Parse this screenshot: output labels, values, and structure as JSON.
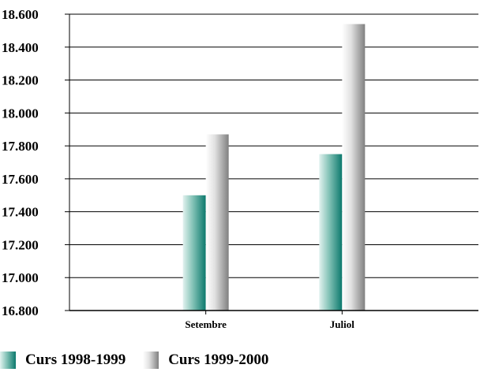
{
  "chart_data": {
    "type": "bar",
    "categories": [
      "Setembre",
      "Juliol"
    ],
    "series": [
      {
        "name": "Curs 1998-1999",
        "values": [
          17500,
          17750
        ],
        "color": "#0b786c"
      },
      {
        "name": "Curs 1999-2000",
        "values": [
          17870,
          18540
        ],
        "color": "#808080"
      }
    ],
    "ylim": [
      16800,
      18600
    ],
    "yticks": [
      16800,
      17000,
      17200,
      17400,
      17600,
      17800,
      18000,
      18200,
      18400,
      18600
    ],
    "ytick_labels": [
      "16.800",
      "17.000",
      "17.200",
      "17.400",
      "17.600",
      "17.800",
      "18.000",
      "18.200",
      "18.400",
      "18.600"
    ],
    "grid": true,
    "legend": "bottom-left",
    "title": "",
    "xlabel": "",
    "ylabel": ""
  }
}
